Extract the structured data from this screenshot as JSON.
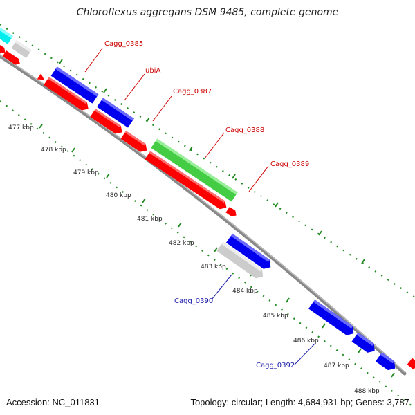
{
  "title": "Chloroflexus aggregans DSM 9485, complete genome",
  "footer": {
    "accession": "Accession: NC_011831",
    "summary": "Topology: circular; Length: 4,684,931 bp; Genes: 3,787"
  },
  "colors": {
    "backbone": "#8a8a8a",
    "tick": "#228b22",
    "red": "#ff0000",
    "blue": "#0000ee",
    "green": "#44cc44",
    "gray": "#cccccc",
    "cyan": "#00eeee",
    "label_red": "#cc0000",
    "label_blue": "#1a1aaa"
  },
  "kbp_labels": [
    "477 kbp",
    "478 kbp",
    "479 kbp",
    "480 kbp",
    "481 kbp",
    "482 kbp",
    "483 kbp",
    "484 kbp",
    "485 kbp",
    "486 kbp",
    "487 kbp",
    "488 kbp"
  ],
  "gene_labels": [
    {
      "text": "Cagg_0385",
      "color": "label_red"
    },
    {
      "text": "ubiA",
      "color": "label_red"
    },
    {
      "text": "Cagg_0387",
      "color": "label_red"
    },
    {
      "text": "Cagg_0388",
      "color": "label_red"
    },
    {
      "text": "Cagg_0389",
      "color": "label_red"
    },
    {
      "text": "Cagg_0390",
      "color": "label_blue"
    },
    {
      "text": "Cagg_0392",
      "color": "label_blue"
    }
  ]
}
